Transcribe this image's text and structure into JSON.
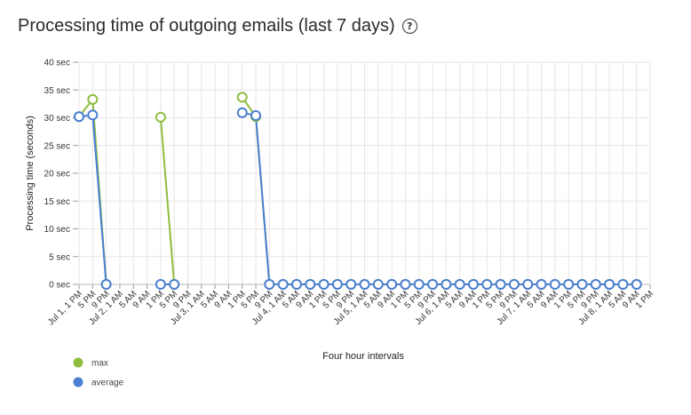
{
  "header": {
    "title": "Processing time of outgoing emails (last 7 days)",
    "help_icon": "?"
  },
  "chart_data": {
    "type": "line",
    "xlabel": "Four hour intervals",
    "ylabel": "Processing time (seconds)",
    "ylim": [
      0,
      40
    ],
    "yticks": [
      "0 sec",
      "5 sec",
      "10 sec",
      "15 sec",
      "20 sec",
      "25 sec",
      "30 sec",
      "35 sec",
      "40 sec"
    ],
    "grid": true,
    "legend_position": "bottom-left",
    "categories": [
      "Jul 1, 1 PM",
      "5 PM",
      "9 PM",
      "Jul 2, 1 AM",
      "5 AM",
      "9 AM",
      "1 PM",
      "5 PM",
      "9 PM",
      "Jul 3, 1 AM",
      "5 AM",
      "9 AM",
      "1 PM",
      "5 PM",
      "9 PM",
      "Jul 4, 1 AM",
      "5 AM",
      "9 AM",
      "1 PM",
      "5 PM",
      "9 PM",
      "Jul 5, 1 AM",
      "5 AM",
      "9 AM",
      "1 PM",
      "5 PM",
      "9 PM",
      "Jul 6, 1 AM",
      "5 AM",
      "9 AM",
      "1 PM",
      "5 PM",
      "9 PM",
      "Jul 7, 1 AM",
      "5 AM",
      "9 AM",
      "1 PM",
      "5 PM",
      "9 PM",
      "Jul 8, 1 AM",
      "5 AM",
      "9 AM",
      "1 PM"
    ],
    "series": [
      {
        "name": "max",
        "color": "#8fbc3f",
        "values": [
          30.2,
          33.3,
          0,
          null,
          null,
          null,
          30.1,
          0,
          null,
          null,
          null,
          null,
          33.7,
          30.2,
          0,
          0,
          0,
          0,
          0,
          0,
          0,
          0,
          0,
          0,
          0,
          0,
          0,
          0,
          0,
          0,
          0,
          0,
          0,
          0,
          0,
          0,
          0,
          0,
          0,
          0,
          0,
          0,
          null
        ]
      },
      {
        "name": "average",
        "color": "#4a7fd1",
        "values": [
          30.2,
          30.5,
          0,
          null,
          null,
          null,
          0,
          0,
          null,
          null,
          null,
          null,
          30.9,
          30.4,
          0,
          0,
          0,
          0,
          0,
          0,
          0,
          0,
          0,
          0,
          0,
          0,
          0,
          0,
          0,
          0,
          0,
          0,
          0,
          0,
          0,
          0,
          0,
          0,
          0,
          0,
          0,
          0,
          null
        ]
      }
    ]
  }
}
